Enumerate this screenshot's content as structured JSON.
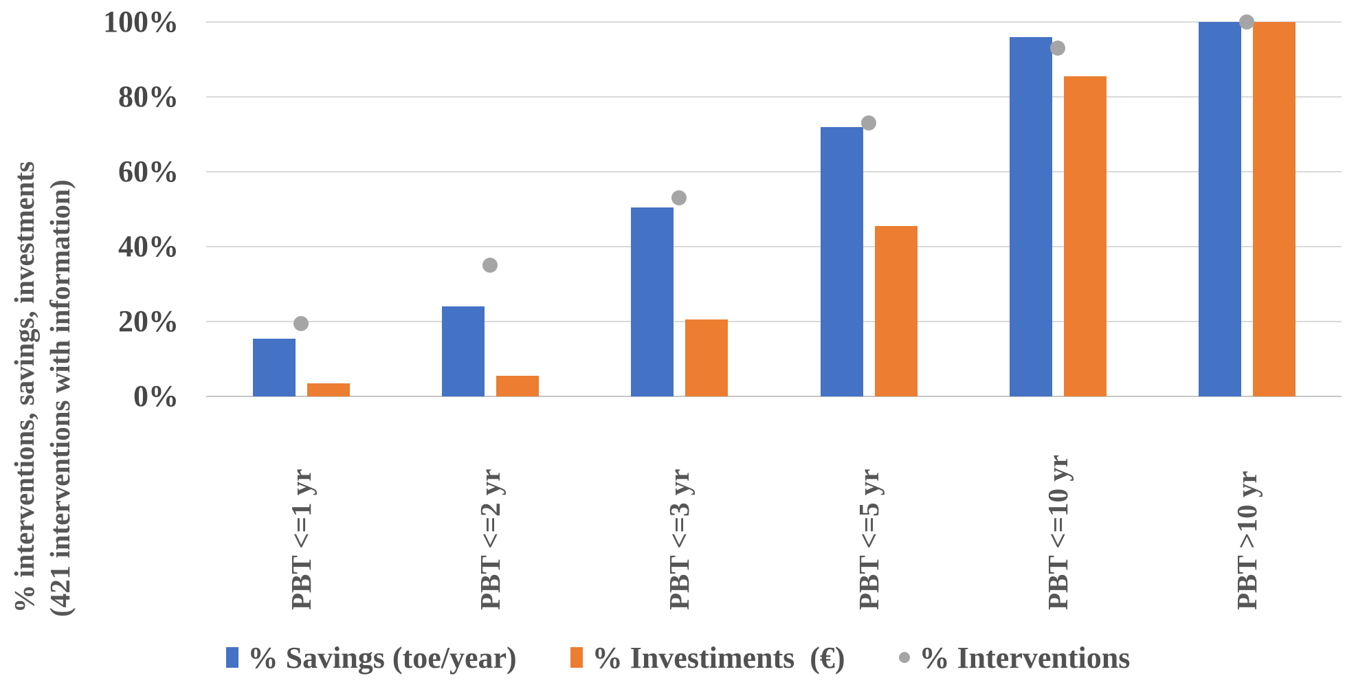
{
  "chart_data": {
    "type": "bar",
    "title": "",
    "categories": [
      "PBT <=1 yr",
      "PBT <=2 yr",
      "PBT <=3 yr",
      "PBT <=5 yr",
      "PBT <=10 yr",
      "PBT >10 yr"
    ],
    "series": [
      {
        "name": "% Savings (toe/year)",
        "kind": "bar",
        "color": "#4472C4",
        "values": [
          15.5,
          24,
          50.5,
          72,
          96,
          100
        ]
      },
      {
        "name": "% Investiments  (€)",
        "kind": "bar",
        "color": "#ED7D31",
        "values": [
          3.5,
          5.5,
          20.5,
          45.5,
          85.5,
          100
        ]
      },
      {
        "name": "% Interventions",
        "kind": "scatter",
        "color": "#A5A5A5",
        "values": [
          19.5,
          35,
          53,
          73,
          93,
          100
        ]
      }
    ],
    "ylabel_line1": "% interventions, savings, investments",
    "ylabel_line2": "(421 interventions with information)",
    "xlabel": "",
    "yticks": [
      0,
      20,
      40,
      60,
      80,
      100
    ],
    "ytick_labels": [
      "0%",
      "20%",
      "40%",
      "60%",
      "80%",
      "100%"
    ],
    "ylim": [
      0,
      100
    ],
    "grid": true,
    "legend_position": "bottom",
    "grid_color": "#D9D9D9",
    "text_color": "#565656"
  }
}
